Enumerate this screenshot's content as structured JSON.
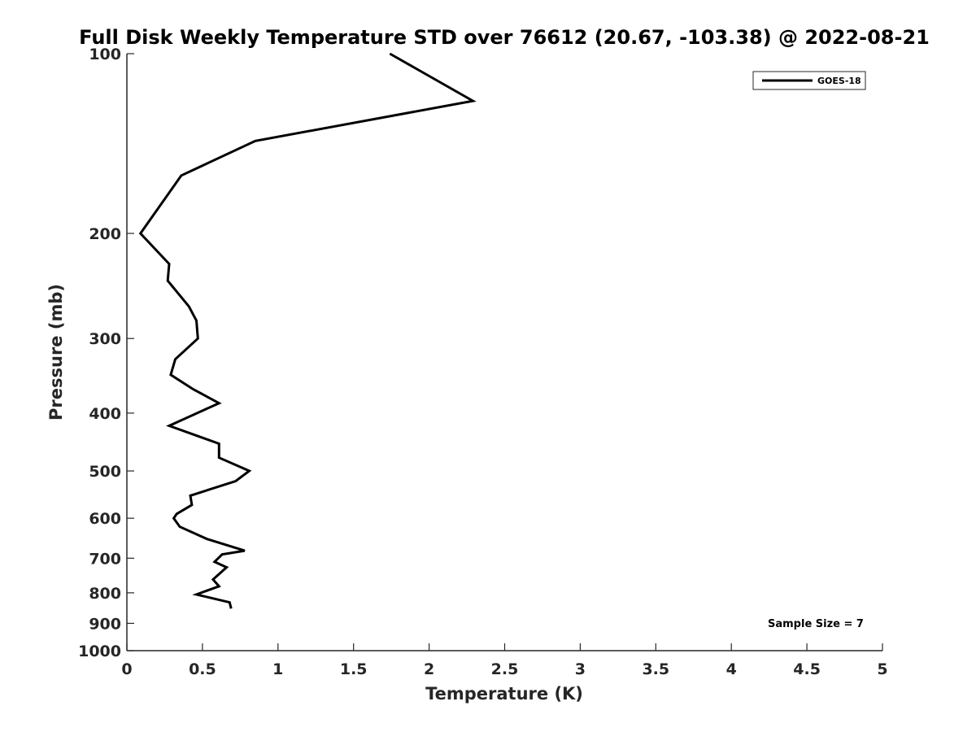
{
  "chart_data": {
    "type": "line",
    "title": "Full Disk Weekly Temperature STD over 76612 (20.67, -103.38) @ 2022-08-21",
    "xlabel": "Temperature (K)",
    "ylabel": "Pressure (mb)",
    "xlim": [
      0,
      5
    ],
    "ylim": [
      100,
      1000
    ],
    "y_scale": "log",
    "y_reversed": true,
    "grid": false,
    "legend_position": "top-right",
    "x_ticks": [
      "0",
      "0.5",
      "1",
      "1.5",
      "2",
      "2.5",
      "3",
      "3.5",
      "4",
      "4.5",
      "5"
    ],
    "y_ticks": [
      "100",
      "200",
      "300",
      "400",
      "500",
      "600",
      "700",
      "800",
      "900",
      "1000"
    ],
    "series": [
      {
        "name": "GOES-18",
        "color": "#000000",
        "points": [
          {
            "x": 1.74,
            "p": 100
          },
          {
            "x": 2.29,
            "p": 120
          },
          {
            "x": 0.85,
            "p": 140
          },
          {
            "x": 0.36,
            "p": 160
          },
          {
            "x": 0.09,
            "p": 200
          },
          {
            "x": 0.28,
            "p": 225
          },
          {
            "x": 0.27,
            "p": 240
          },
          {
            "x": 0.41,
            "p": 265
          },
          {
            "x": 0.46,
            "p": 280
          },
          {
            "x": 0.47,
            "p": 300
          },
          {
            "x": 0.32,
            "p": 325
          },
          {
            "x": 0.29,
            "p": 345
          },
          {
            "x": 0.44,
            "p": 365
          },
          {
            "x": 0.61,
            "p": 385
          },
          {
            "x": 0.28,
            "p": 420
          },
          {
            "x": 0.61,
            "p": 450
          },
          {
            "x": 0.61,
            "p": 475
          },
          {
            "x": 0.81,
            "p": 500
          },
          {
            "x": 0.72,
            "p": 520
          },
          {
            "x": 0.42,
            "p": 550
          },
          {
            "x": 0.43,
            "p": 570
          },
          {
            "x": 0.33,
            "p": 590
          },
          {
            "x": 0.31,
            "p": 600
          },
          {
            "x": 0.35,
            "p": 620
          },
          {
            "x": 0.53,
            "p": 650
          },
          {
            "x": 0.78,
            "p": 680
          },
          {
            "x": 0.63,
            "p": 690
          },
          {
            "x": 0.58,
            "p": 710
          },
          {
            "x": 0.66,
            "p": 725
          },
          {
            "x": 0.57,
            "p": 760
          },
          {
            "x": 0.61,
            "p": 780
          },
          {
            "x": 0.46,
            "p": 805
          },
          {
            "x": 0.68,
            "p": 830
          },
          {
            "x": 0.69,
            "p": 850
          }
        ]
      }
    ],
    "annotations": [
      "Sample Size = 7"
    ]
  }
}
